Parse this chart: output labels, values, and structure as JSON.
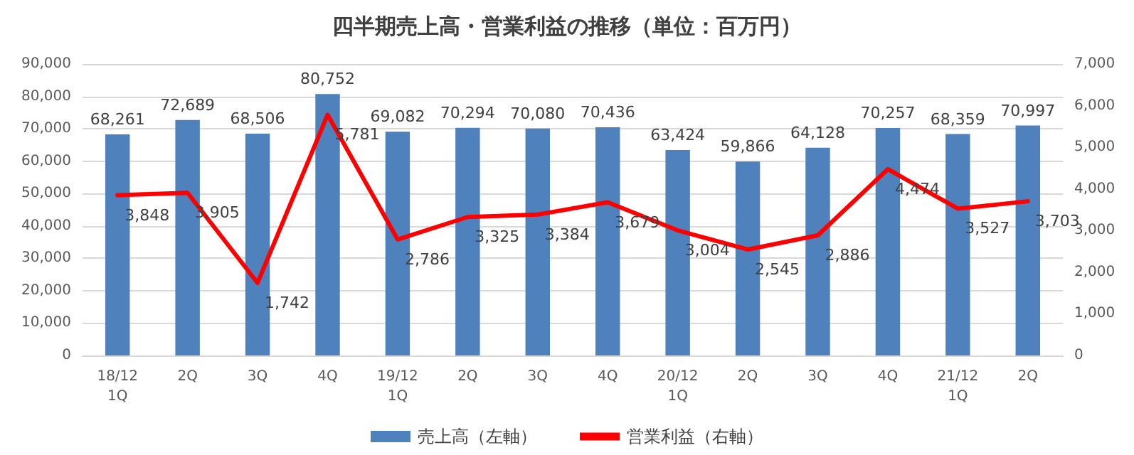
{
  "chart_data": {
    "type": "bar",
    "title": "四半期売上高・営業利益の推移（単位：百万円）",
    "categories": [
      "18/12\n1Q",
      "2Q",
      "3Q",
      "4Q",
      "19/12\n1Q",
      "2Q",
      "3Q",
      "4Q",
      "20/12\n1Q",
      "2Q",
      "3Q",
      "4Q",
      "21/12\n1Q",
      "2Q"
    ],
    "series": [
      {
        "name": "売上高（左軸）",
        "color": "#4f81bd",
        "values": [
          68261,
          72689,
          68506,
          80752,
          69082,
          70294,
          70080,
          70436,
          63424,
          59866,
          64128,
          70257,
          68359,
          70997
        ],
        "value_labels": [
          "68,261",
          "72,689",
          "68,506",
          "80,752",
          "69,082",
          "70,294",
          "70,080",
          "70,436",
          "63,424",
          "59,866",
          "64,128",
          "70,257",
          "68,359",
          "70,997"
        ]
      },
      {
        "name": "営業利益（右軸）",
        "type": "line",
        "axis": "y2",
        "color": "#ff0000",
        "values": [
          3848,
          3905,
          1742,
          5781,
          2786,
          3325,
          3384,
          3679,
          3004,
          2545,
          2886,
          4474,
          3527,
          3703
        ],
        "value_labels": [
          "3,848",
          "3,905",
          "1,742",
          "5,781",
          "2,786",
          "3,325",
          "3,384",
          "3,679",
          "3,004",
          "2,545",
          "2,886",
          "4,474",
          "3,527",
          "3,703"
        ]
      }
    ],
    "ylim": [
      0,
      90000
    ],
    "yticks": [
      {
        "value": 0,
        "label": "0"
      },
      {
        "value": 10000,
        "label": "10,000"
      },
      {
        "value": 20000,
        "label": "20,000"
      },
      {
        "value": 30000,
        "label": "30,000"
      },
      {
        "value": 40000,
        "label": "40,000"
      },
      {
        "value": 50000,
        "label": "50,000"
      },
      {
        "value": 60000,
        "label": "60,000"
      },
      {
        "value": 70000,
        "label": "70,000"
      },
      {
        "value": 80000,
        "label": "80,000"
      },
      {
        "value": 90000,
        "label": "90,000"
      }
    ],
    "y2lim": [
      0,
      7000
    ],
    "y2ticks": [
      {
        "value": 0,
        "label": "0"
      },
      {
        "value": 1000,
        "label": "1,000"
      },
      {
        "value": 2000,
        "label": "2,000"
      },
      {
        "value": 3000,
        "label": "3,000"
      },
      {
        "value": 4000,
        "label": "4,000"
      },
      {
        "value": 5000,
        "label": "5,000"
      },
      {
        "value": 6000,
        "label": "6,000"
      },
      {
        "value": 7000,
        "label": "7,000"
      }
    ],
    "grid": "y",
    "legend": "bottom",
    "marker": "none",
    "line_style": "solid"
  }
}
